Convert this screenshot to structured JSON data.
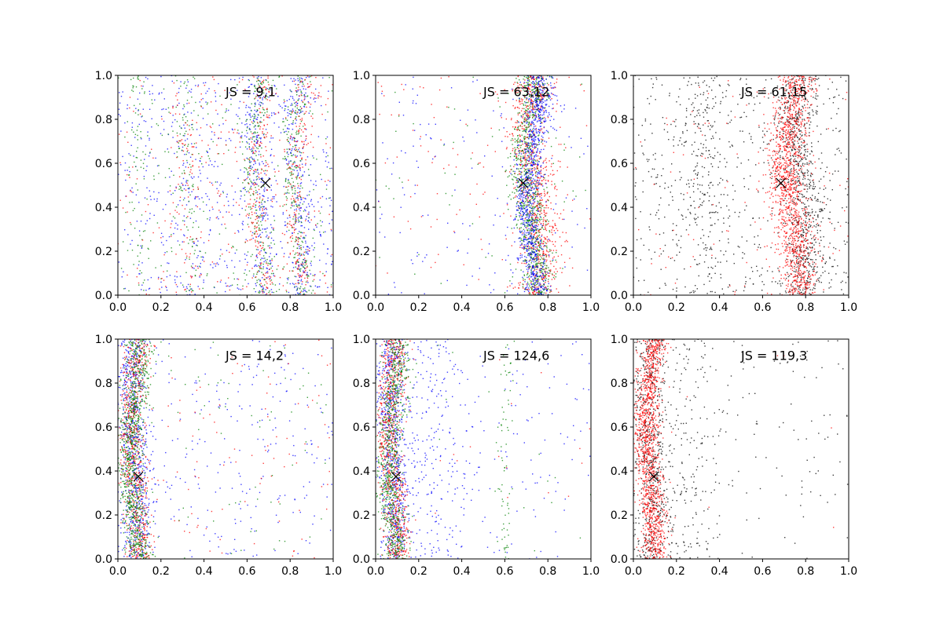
{
  "figure": {
    "colors": {
      "blue": "#0000ff",
      "green": "#008000",
      "red": "#ff0000",
      "black": "#000000"
    }
  },
  "chart_data": [
    {
      "type": "scatter",
      "panel": "top-left",
      "annotation": "JS = 9,1",
      "marker": {
        "x": 0.685,
        "y": 0.51,
        "symbol": "x"
      },
      "xlim": [
        0,
        1
      ],
      "ylim": [
        0,
        1
      ],
      "xticks": [
        "0.0",
        "0.2",
        "0.4",
        "0.6",
        "0.8",
        "1.0"
      ],
      "yticks": [
        "0.0",
        "0.2",
        "0.4",
        "0.6",
        "0.8",
        "1.0"
      ],
      "series": [
        {
          "color": "blue",
          "clusters": [
            {
              "x0": 0.66,
              "amp": 0.025,
              "spread": 0.03,
              "n": 220
            },
            {
              "x0": 0.84,
              "amp": 0.025,
              "spread": 0.03,
              "n": 220
            },
            {
              "x0": 0.33,
              "amp": 0.02,
              "spread": 0.04,
              "n": 60
            }
          ],
          "background": 600
        },
        {
          "color": "green",
          "clusters": [
            {
              "x0": 0.65,
              "amp": 0.025,
              "spread": 0.025,
              "n": 230
            },
            {
              "x0": 0.83,
              "amp": 0.025,
              "spread": 0.025,
              "n": 230
            },
            {
              "x0": 0.33,
              "amp": 0.02,
              "spread": 0.03,
              "n": 90
            },
            {
              "x0": 0.09,
              "amp": 0.01,
              "spread": 0.02,
              "n": 60
            }
          ],
          "background": 250
        },
        {
          "color": "red",
          "clusters": [
            {
              "x0": 0.66,
              "amp": 0.025,
              "spread": 0.025,
              "n": 200
            },
            {
              "x0": 0.84,
              "amp": 0.025,
              "spread": 0.025,
              "n": 200
            },
            {
              "x0": 0.33,
              "amp": 0.02,
              "spread": 0.035,
              "n": 70
            }
          ],
          "background": 260
        }
      ]
    },
    {
      "type": "scatter",
      "panel": "top-middle",
      "annotation": "JS = 63,12",
      "marker": {
        "x": 0.685,
        "y": 0.51,
        "symbol": "x"
      },
      "xlim": [
        0,
        1
      ],
      "ylim": [
        0,
        1
      ],
      "xticks": [
        "0.0",
        "0.2",
        "0.4",
        "0.6",
        "0.8",
        "1.0"
      ],
      "yticks": [
        "0.0",
        "0.2",
        "0.4",
        "0.6",
        "0.8",
        "1.0"
      ],
      "series": [
        {
          "color": "red",
          "clusters": [
            {
              "x0": 0.74,
              "amp": 0.03,
              "spread": 0.05,
              "n": 900
            }
          ],
          "background": 110
        },
        {
          "color": "green",
          "clusters": [
            {
              "x0": 0.72,
              "amp": 0.03,
              "spread": 0.035,
              "n": 900
            }
          ],
          "background": 70
        },
        {
          "color": "blue",
          "clusters": [
            {
              "x0": 0.73,
              "amp": 0.03,
              "spread": 0.03,
              "n": 900
            }
          ],
          "background": 160
        }
      ]
    },
    {
      "type": "scatter",
      "panel": "top-right",
      "annotation": "JS = 61,15",
      "marker": {
        "x": 0.685,
        "y": 0.51,
        "symbol": "x"
      },
      "xlim": [
        0,
        1
      ],
      "ylim": [
        0,
        1
      ],
      "xticks": [
        "0.0",
        "0.2",
        "0.4",
        "0.6",
        "0.8",
        "1.0"
      ],
      "yticks": [
        "0.0",
        "0.2",
        "0.4",
        "0.6",
        "0.8",
        "1.0"
      ],
      "series": [
        {
          "color": "black",
          "clusters": [
            {
              "x0": 0.78,
              "amp": 0.03,
              "spread": 0.05,
              "n": 700
            },
            {
              "x0": 0.33,
              "amp": 0.02,
              "spread": 0.05,
              "n": 180
            }
          ],
          "background": 600
        },
        {
          "color": "red",
          "clusters": [
            {
              "x0": 0.74,
              "amp": 0.03,
              "spread": 0.045,
              "n": 1300
            }
          ],
          "background": 120
        }
      ]
    },
    {
      "type": "scatter",
      "panel": "bottom-left",
      "annotation": "JS = 14,2",
      "marker": {
        "x": 0.095,
        "y": 0.375,
        "symbol": "x"
      },
      "xlim": [
        0,
        1
      ],
      "ylim": [
        0,
        1
      ],
      "xticks": [
        "0.0",
        "0.2",
        "0.4",
        "0.6",
        "0.8",
        "1.0"
      ],
      "yticks": [
        "0.0",
        "0.2",
        "0.4",
        "0.6",
        "0.8",
        "1.0"
      ],
      "series": [
        {
          "color": "blue",
          "clusters": [
            {
              "x0": 0.08,
              "amp": 0.02,
              "spread": 0.035,
              "n": 700
            }
          ],
          "background": 260
        },
        {
          "color": "red",
          "clusters": [
            {
              "x0": 0.08,
              "amp": 0.02,
              "spread": 0.03,
              "n": 700
            }
          ],
          "background": 110
        },
        {
          "color": "green",
          "clusters": [
            {
              "x0": 0.08,
              "amp": 0.02,
              "spread": 0.03,
              "n": 900
            }
          ],
          "background": 90
        }
      ]
    },
    {
      "type": "scatter",
      "panel": "bottom-middle",
      "annotation": "JS = 124,6",
      "marker": {
        "x": 0.095,
        "y": 0.375,
        "symbol": "x"
      },
      "xlim": [
        0,
        1
      ],
      "ylim": [
        0,
        1
      ],
      "xticks": [
        "0.0",
        "0.2",
        "0.4",
        "0.6",
        "0.8",
        "1.0"
      ],
      "yticks": [
        "0.0",
        "0.2",
        "0.4",
        "0.6",
        "0.8",
        "1.0"
      ],
      "series": [
        {
          "color": "blue",
          "clusters": [
            {
              "x0": 0.08,
              "amp": 0.02,
              "spread": 0.035,
              "n": 700
            },
            {
              "x0": 0.25,
              "amp": 0.02,
              "spread": 0.09,
              "n": 220
            }
          ],
          "background": 180
        },
        {
          "color": "red",
          "clusters": [
            {
              "x0": 0.08,
              "amp": 0.02,
              "spread": 0.03,
              "n": 800
            }
          ],
          "background": 20
        },
        {
          "color": "green",
          "clusters": [
            {
              "x0": 0.08,
              "amp": 0.02,
              "spread": 0.03,
              "n": 800
            },
            {
              "x0": 0.6,
              "amp": 0.01,
              "spread": 0.015,
              "n": 70
            }
          ],
          "background": 20
        }
      ]
    },
    {
      "type": "scatter",
      "panel": "bottom-right",
      "annotation": "JS = 119,3",
      "marker": {
        "x": 0.095,
        "y": 0.375,
        "symbol": "x"
      },
      "xlim": [
        0,
        1
      ],
      "ylim": [
        0,
        1
      ],
      "xticks": [
        "0.0",
        "0.2",
        "0.4",
        "0.6",
        "0.8",
        "1.0"
      ],
      "yticks": [
        "0.0",
        "0.2",
        "0.4",
        "0.6",
        "0.8",
        "1.0"
      ],
      "series": [
        {
          "color": "black",
          "clusters": [
            {
              "x0": 0.08,
              "amp": 0.02,
              "spread": 0.05,
              "n": 650
            },
            {
              "x0": 0.28,
              "amp": 0.02,
              "spread": 0.06,
              "n": 120
            }
          ],
          "background": 170
        },
        {
          "color": "red",
          "clusters": [
            {
              "x0": 0.08,
              "amp": 0.02,
              "spread": 0.03,
              "n": 1300
            }
          ],
          "background": 10
        }
      ]
    }
  ]
}
